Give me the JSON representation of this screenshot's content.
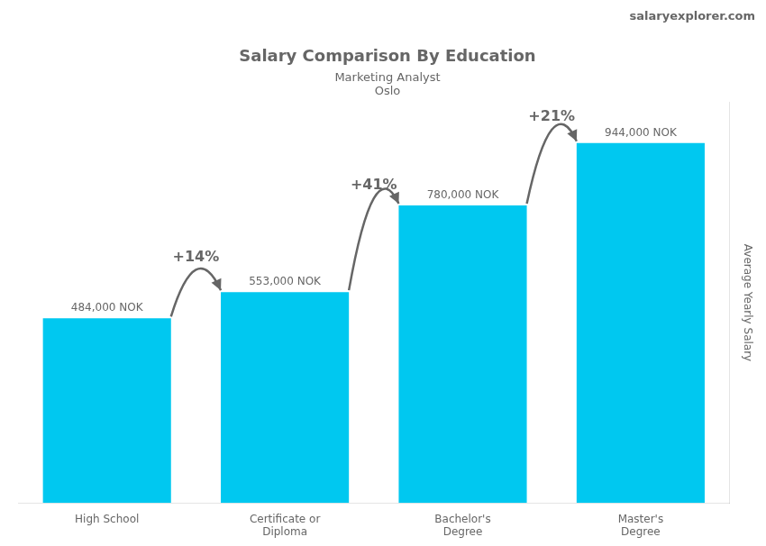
{
  "chart_data": {
    "type": "bar",
    "title": "Salary Comparison By Education",
    "subtitle": [
      "Marketing Analyst",
      "Oslo"
    ],
    "categories": [
      "High School",
      "Certificate or\nDiploma",
      "Bachelor's\nDegree",
      "Master's\nDegree"
    ],
    "values": [
      484000,
      553000,
      780000,
      944000
    ],
    "value_labels": [
      "484,000 NOK",
      "553,000 NOK",
      "780,000 NOK",
      "944,000 NOK"
    ],
    "data_labels": true,
    "color": "#00C8F0",
    "ylabel": "Average Yearly Salary",
    "ylim": [
      0,
      1050000
    ],
    "tick_labels": "x",
    "grid": false,
    "annotations": [
      {
        "text": "+14%",
        "from": "High School",
        "to": "Certificate or\nDiploma"
      },
      {
        "text": "+41%",
        "from": "Certificate or\nDiploma",
        "to": "Bachelor's\nDegree"
      },
      {
        "text": "+21%",
        "from": "Bachelor's\nDegree",
        "to": "Master's\nDegree"
      },
      {
        "text": "salaryexplorer.com"
      }
    ]
  }
}
